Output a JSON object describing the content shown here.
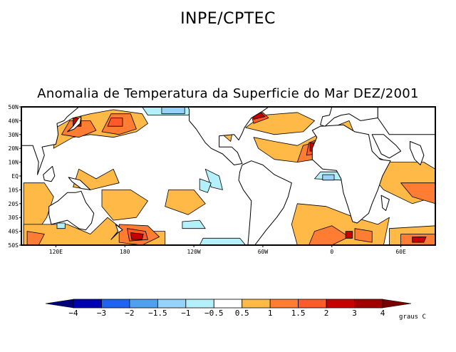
{
  "header": {
    "institution": "INPE/CPTEC",
    "title": "Anomalia de Temperatura da Superficie do Mar DEZ/2001"
  },
  "map": {
    "projection": "cylindrical-equidistant",
    "lon_range": [
      90,
      450
    ],
    "lat_range": [
      -50,
      50
    ],
    "lat_ticks": [
      "50N",
      "40N",
      "30N",
      "20N",
      "10N",
      "EQ",
      "10S",
      "20S",
      "30S",
      "40S",
      "50S"
    ],
    "lon_ticks": [
      "120E",
      "180",
      "120W",
      "60W",
      "0",
      "60E"
    ],
    "variable": "sea surface temperature anomaly",
    "period": "DEZ/2001"
  },
  "legend": {
    "levels": [
      "-4",
      "-3",
      "-2",
      "-1.5",
      "-1",
      "-0.5",
      "0.5",
      "1",
      "1.5",
      "2",
      "3",
      "4"
    ],
    "colors": [
      "#00007a",
      "#0000b4",
      "#1e64f0",
      "#50a0f0",
      "#96d2fa",
      "#b4f0fa",
      "#ffffff",
      "#ffb946",
      "#ff7d32",
      "#ff5a28",
      "#c80000",
      "#a00000",
      "#780000"
    ],
    "unit": "graus C"
  },
  "chart_data": {
    "type": "heatmap",
    "title": "Anomalia de Temperatura da Superficie do Mar DEZ/2001",
    "supertitle": "INPE/CPTEC",
    "xlabel": "",
    "ylabel": "",
    "x_ticks": [
      "120E",
      "180",
      "120W",
      "60W",
      "0",
      "60E"
    ],
    "y_ticks": [
      "50N",
      "40N",
      "30N",
      "20N",
      "10N",
      "EQ",
      "10S",
      "20S",
      "30S",
      "40S",
      "50S"
    ],
    "xlim": [
      90,
      450
    ],
    "ylim": [
      -50,
      50
    ],
    "colorbar": {
      "levels": [
        -4,
        -3,
        -2,
        -1.5,
        -1,
        -0.5,
        0.5,
        1,
        1.5,
        2,
        3,
        4
      ],
      "unit": "graus C",
      "extend": "both"
    },
    "features": [
      {
        "name": "NW Pacific warm anomaly",
        "lon": 170,
        "lat": 35,
        "max_value": 2
      },
      {
        "name": "Kuroshio extension hot spots",
        "lon": 140,
        "lat": 38,
        "max_value": 3
      },
      {
        "name": "SW Pacific warm anomaly",
        "lon": 195,
        "lat": -43,
        "max_value": 3
      },
      {
        "name": "Gulf of Guinea cool anomaly",
        "lon": 357,
        "lat": -3,
        "min_value": -1.5
      },
      {
        "name": "NW Atlantic warm anomaly",
        "lon": 295,
        "lat": 40,
        "max_value": 3
      },
      {
        "name": "Canary upwelling warm anomaly",
        "lon": 343,
        "lat": 20,
        "max_value": 3
      },
      {
        "name": "South Atlantic warm anomaly",
        "lon": 370,
        "lat": -40,
        "max_value": 3
      },
      {
        "name": "South Indian warm anomaly",
        "lon": 440,
        "lat": -45,
        "max_value": 3
      },
      {
        "name": "NE Pacific cool anomaly",
        "lon": 225,
        "lat": 45,
        "min_value": -1.5
      },
      {
        "name": "East Pacific cool anomaly",
        "lon": 265,
        "lat": -3,
        "min_value": -1
      }
    ]
  }
}
